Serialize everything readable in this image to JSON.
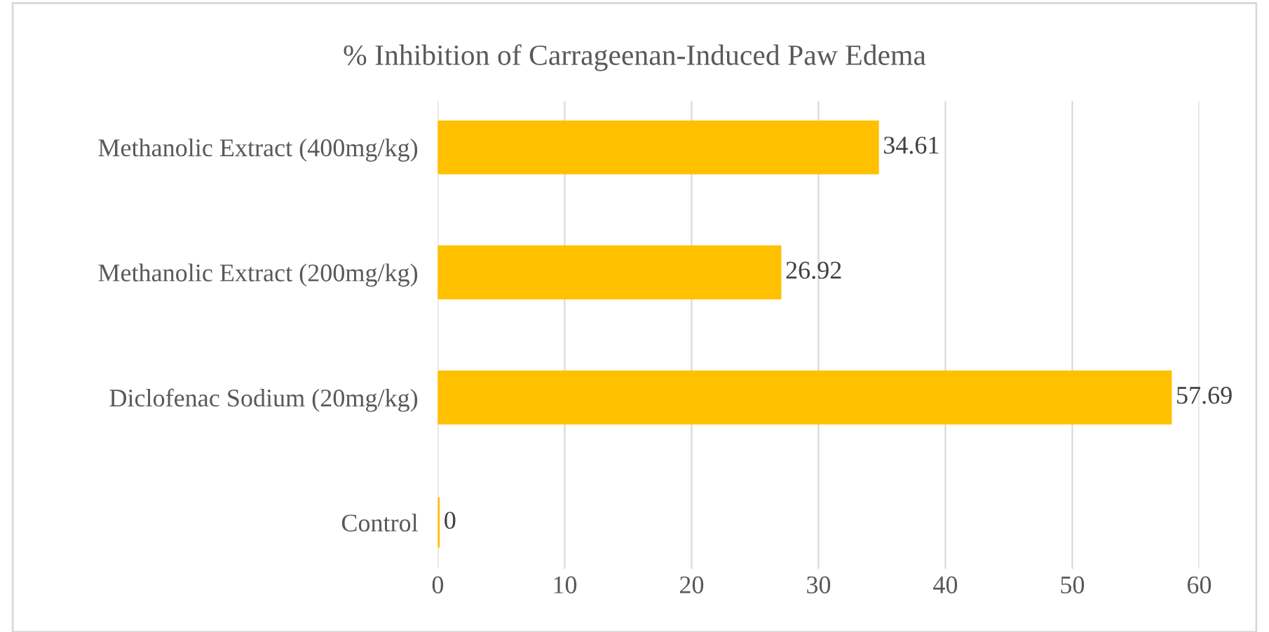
{
  "chart_data": {
    "type": "bar",
    "orientation": "horizontal",
    "title": "% Inhibition of Carrageenan-Induced Paw Edema",
    "categories": [
      "Methanolic Extract (400mg/kg)",
      "Methanolic Extract (200mg/kg)",
      "Diclofenac Sodium (20mg/kg)",
      "Control"
    ],
    "values": [
      34.61,
      26.92,
      57.69,
      0
    ],
    "color": "#ffc000",
    "xlim": [
      0,
      60
    ],
    "xticks": [
      0,
      10,
      20,
      30,
      40,
      50,
      60
    ],
    "grid": "x",
    "data_labels": true
  }
}
